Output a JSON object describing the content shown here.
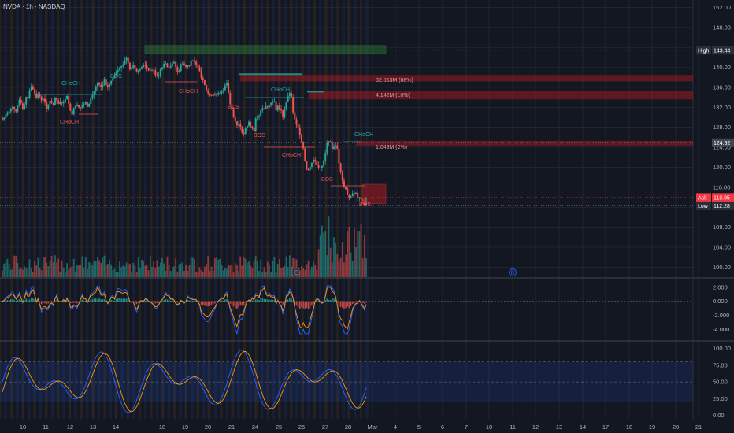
{
  "header": {
    "title": "NVDA · 1h · NASDAQ"
  },
  "colors": {
    "background": "#131722",
    "up": "#26a69a",
    "down": "#ef5350",
    "blue_line": "#2962ff",
    "orange_line": "#ff9800",
    "grid": "#2a2e39",
    "session_blue": "#1e2a4d",
    "session_orange": "#3a2e1e",
    "zone_green": "#2e7d32",
    "zone_red": "#b71c1c",
    "sr_blue": "#1e88e5"
  },
  "chart_data": [
    {
      "type": "candlestick",
      "title": "NVDA · 1h · NASDAQ",
      "x_ticks": [
        "10",
        "11",
        "12",
        "13",
        "14",
        "18",
        "19",
        "20",
        "21",
        "24",
        "25",
        "26",
        "27",
        "28",
        "Mar",
        "4",
        "5",
        "6",
        "7",
        "10",
        "11",
        "12",
        "13",
        "14",
        "17",
        "18",
        "19",
        "20",
        "21",
        "24"
      ],
      "y_ticks": [
        100.0,
        104.0,
        108.0,
        112.0,
        116.0,
        120.0,
        124.0,
        128.0,
        132.0,
        136.0,
        140.0,
        144.0,
        148.0,
        152.0
      ],
      "ylim": [
        98,
        153.5
      ],
      "price_tags": [
        {
          "label": "High",
          "value": "143.44",
          "color": "#2a2e39"
        },
        {
          "label": "",
          "value": "124.92",
          "color": "#434651"
        },
        {
          "label": "Ask",
          "value": "113.95",
          "color": "#f23645"
        },
        {
          "label": "Low",
          "value": "112.28",
          "color": "#2a2e39"
        }
      ],
      "closes": [
        129.6,
        129.9,
        130.5,
        130.9,
        131.2,
        131.7,
        132.1,
        131.6,
        131.2,
        132.3,
        133.5,
        132.8,
        131.7,
        132.6,
        134.1,
        133.9,
        135.3,
        136.2,
        135.6,
        134.8,
        133.9,
        134.7,
        134.2,
        133.4,
        133.7,
        133.0,
        131.6,
        132.6,
        133.3,
        132.9,
        132.5,
        133.8,
        133.4,
        132.7,
        133.1,
        132.8,
        133.0,
        133.6,
        134.3,
        132.7,
        131.3,
        130.6,
        131.8,
        132.2,
        132.5,
        132.0,
        131.9,
        132.4,
        132.6,
        133.0,
        132.1,
        132.7,
        133.9,
        134.4,
        135.3,
        136.1,
        136.8,
        136.5,
        136.0,
        136.4,
        137.7,
        136.5,
        136.1,
        136.6,
        137.3,
        137.9,
        138.4,
        139.0,
        139.4,
        139.8,
        140.2,
        140.6,
        141.4,
        141.9,
        140.9,
        139.6,
        139.9,
        140.5,
        139.7,
        139.2,
        139.4,
        139.7,
        140.1,
        140.5,
        140.4,
        139.9,
        139.4,
        139.5,
        139.5,
        139.4,
        138.5,
        138.2,
        138.3,
        139.6,
        140.0,
        140.7,
        140.8,
        140.1,
        140.0,
        140.3,
        140.8,
        141.1,
        140.1,
        139.0,
        139.3,
        140.6,
        140.8,
        140.6,
        140.1,
        140.4,
        140.3,
        141.4,
        141.4,
        141.1,
        140.6,
        140.1,
        139.3,
        137.9,
        137.4,
        136.5,
        135.4,
        134.8,
        134.4,
        134.3,
        134.7,
        134.5,
        134.5,
        134.9,
        134.9,
        135.3,
        135.5,
        136.4,
        136.9,
        134.9,
        132.6,
        131.5,
        130.1,
        129.2,
        128.4,
        128.7,
        128.1,
        126.9,
        126.7,
        127.8,
        128.3,
        129.1,
        128.2,
        127.9,
        127.2,
        129.8,
        130.2,
        130.3,
        131.4,
        131.8,
        131.7,
        132.2,
        132.0,
        132.4,
        132.9,
        133.2,
        133.2,
        131.4,
        132.3,
        131.7,
        131.4,
        130.0,
        131.6,
        133.0,
        134.2,
        134.9,
        134.1,
        131.0,
        129.6,
        128.5,
        128.0,
        126.4,
        125.1,
        123.8,
        121.2,
        119.6,
        119.4,
        120.1,
        120.9,
        121.5,
        121.3,
        120.4,
        119.9,
        119.9,
        120.3,
        121.2,
        122.9,
        124.8,
        125.2,
        125.0,
        123.7,
        124.1,
        124.4,
        123.7,
        120.8,
        119.1,
        117.3,
        116.1,
        115.6,
        114.4,
        113.8,
        114.2,
        114.8,
        114.7,
        114.9,
        113.8,
        114.0,
        113.6,
        113.3,
        112.4,
        113.9
      ],
      "labels": [
        {
          "text": "CHoCH",
          "color": "#26a69a"
        },
        {
          "text": "BOS",
          "color": "#26a69a"
        },
        {
          "text": "CHoCH",
          "color": "#ef5350"
        },
        {
          "text": "CHoCH",
          "color": "#ef5350"
        },
        {
          "text": "BOS",
          "color": "#ef5350"
        },
        {
          "text": "CHoCH",
          "color": "#26a69a"
        },
        {
          "text": "BOS",
          "color": "#ef5350"
        },
        {
          "text": "CHoCH",
          "color": "#ef5350"
        },
        {
          "text": "BOS",
          "color": "#ef5350"
        },
        {
          "text": "CHoCH",
          "color": "#26a69a"
        },
        {
          "text": "BOS",
          "color": "#ef5350"
        }
      ],
      "volume_zones": [
        {
          "text": "32.853M (86%)"
        },
        {
          "text": "4.142M (10%)"
        },
        {
          "text": "1.049M (2%)"
        }
      ],
      "event_markers": [
        "E",
        "D"
      ]
    },
    {
      "type": "histogram+line",
      "y_ticks": [
        "2.000",
        "0.000",
        "-2.000",
        "-4.000"
      ],
      "ylim": [
        -5.5,
        3.2
      ]
    },
    {
      "type": "line",
      "y_ticks": [
        "100.00",
        "75.00",
        "50.00",
        "25.00",
        "0.00"
      ],
      "ylim": [
        -5,
        110
      ],
      "band": [
        20,
        80
      ]
    }
  ]
}
